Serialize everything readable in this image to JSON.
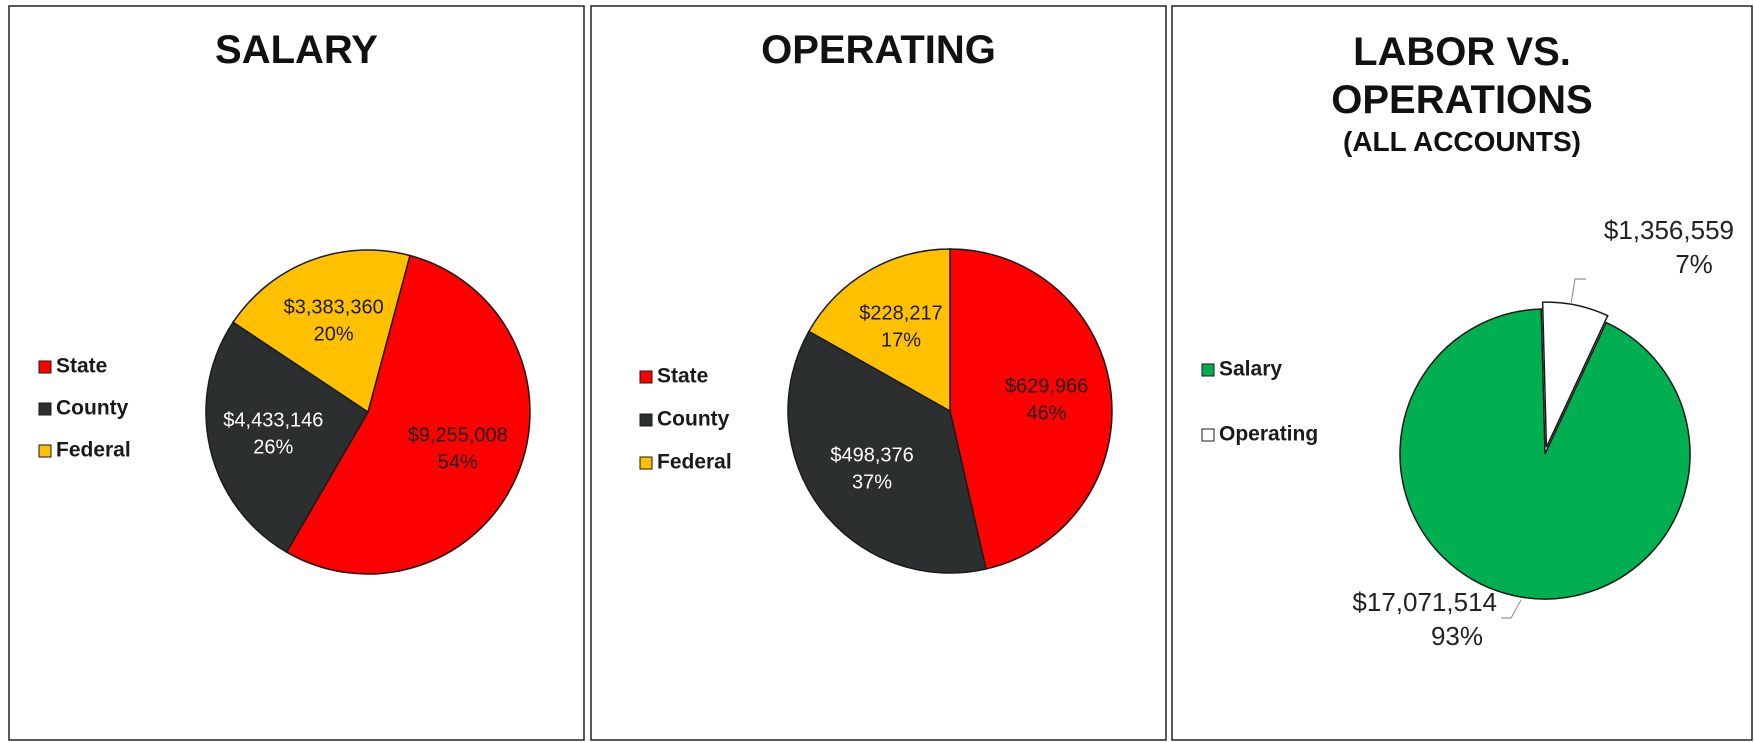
{
  "chart_data": [
    {
      "type": "pie",
      "title": "SALARY",
      "categories": [
        "State",
        "County",
        "Federal"
      ],
      "values": [
        9255008,
        4433146,
        3383360
      ],
      "value_labels": [
        "$9,255,008",
        "$4,433,146",
        "$3,383,360"
      ],
      "percents": [
        54,
        26,
        20
      ],
      "percent_labels": [
        "54%",
        "26%",
        "20%"
      ],
      "colors": [
        "#ff0000",
        "#2b2f30",
        "#ffc000"
      ],
      "legend": "left"
    },
    {
      "type": "pie",
      "title": "OPERATING",
      "categories": [
        "State",
        "County",
        "Federal"
      ],
      "values": [
        629966,
        498376,
        228217
      ],
      "value_labels": [
        "$629,966",
        "$498,376",
        "$228,217"
      ],
      "percents": [
        46,
        37,
        17
      ],
      "percent_labels": [
        "46%",
        "37%",
        "17%"
      ],
      "colors": [
        "#ff0000",
        "#2b2f30",
        "#ffc000"
      ],
      "legend": "left"
    },
    {
      "type": "pie",
      "title": "LABOR VS. OPERATIONS",
      "subtitle": "(ALL ACCOUNTS)",
      "categories": [
        "Salary",
        "Operating"
      ],
      "values": [
        17071514,
        1356559
      ],
      "value_labels": [
        "$17,071,514",
        "$1,356,559"
      ],
      "percents": [
        93,
        7
      ],
      "percent_labels": [
        "93%",
        "7%"
      ],
      "colors": [
        "#00b050",
        "#ffffff"
      ],
      "legend": "left"
    }
  ]
}
